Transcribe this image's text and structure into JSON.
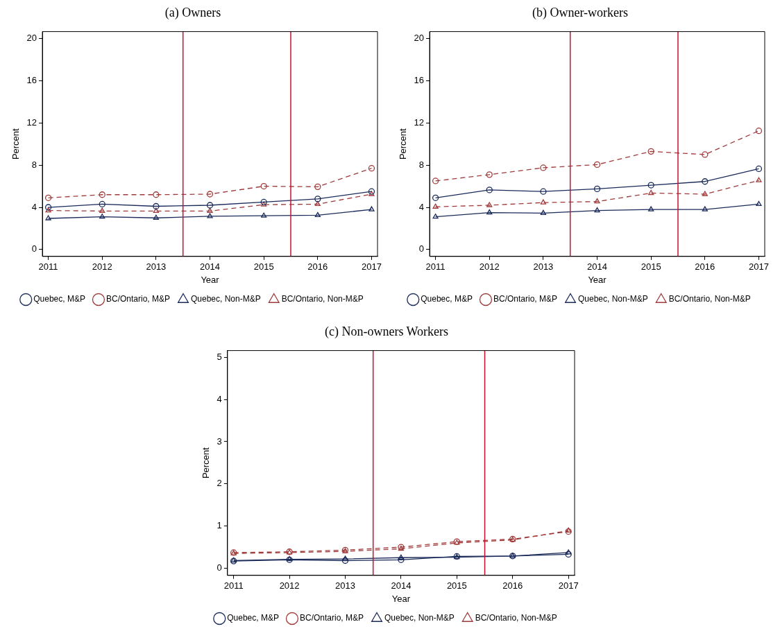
{
  "chart_data": [
    {
      "type": "line",
      "title": "(a) Owners",
      "xlabel": "Year",
      "ylabel": "Percent",
      "x": [
        2011,
        2012,
        2013,
        2014,
        2015,
        2016,
        2017
      ],
      "xlim": [
        2010.89,
        2017.11
      ],
      "xticks": [
        2011,
        2012,
        2013,
        2014,
        2015,
        2016,
        2017
      ],
      "ylim": [
        -0.65,
        20.65
      ],
      "yticks": [
        0,
        4,
        8,
        12,
        16,
        20
      ],
      "legend": "bottom",
      "series": [
        {
          "name": "Quebec, M&P",
          "color": "#1a2a5a",
          "marker": "circle",
          "line_style": "solid",
          "values": [
            4.0,
            4.3,
            4.1,
            4.2,
            4.5,
            4.8,
            5.5
          ]
        },
        {
          "name": "BC/Ontario, M&P",
          "color": "#a03a3a",
          "marker": "circle",
          "line_style": "dashed",
          "values": [
            4.9,
            5.2,
            5.2,
            5.25,
            6.0,
            5.95,
            7.7
          ]
        },
        {
          "name": "Quebec, Non-M&P",
          "color": "#1a2a5a",
          "marker": "triangle",
          "line_style": "solid",
          "values": [
            2.95,
            3.1,
            3.0,
            3.15,
            3.2,
            3.25,
            3.8
          ]
        },
        {
          "name": "BC/Ontario, Non-M&P",
          "color": "#a03a3a",
          "marker": "triangle",
          "line_style": "dashed",
          "values": [
            3.7,
            3.65,
            3.65,
            3.65,
            4.25,
            4.3,
            5.25
          ]
        }
      ],
      "ref_lines": [
        {
          "axis": "x",
          "value": 2013.5,
          "color": "#c8102e"
        },
        {
          "axis": "x",
          "value": 2015.5,
          "color": "#c8102e"
        }
      ]
    },
    {
      "type": "line",
      "title": "(b) Owner-workers",
      "xlabel": "Year",
      "ylabel": "Percent",
      "x": [
        2011,
        2012,
        2013,
        2014,
        2015,
        2016,
        2017
      ],
      "xlim": [
        2010.89,
        2017.11
      ],
      "xticks": [
        2011,
        2012,
        2013,
        2014,
        2015,
        2016,
        2017
      ],
      "ylim": [
        -0.65,
        20.65
      ],
      "yticks": [
        0,
        4,
        8,
        12,
        16,
        20
      ],
      "legend": "bottom",
      "series": [
        {
          "name": "Quebec, M&P",
          "color": "#1a2a5a",
          "marker": "circle",
          "line_style": "solid",
          "values": [
            4.9,
            5.65,
            5.5,
            5.75,
            6.1,
            6.45,
            7.65
          ]
        },
        {
          "name": "BC/Ontario, M&P",
          "color": "#a03a3a",
          "marker": "circle",
          "line_style": "dashed",
          "values": [
            6.5,
            7.1,
            7.75,
            8.05,
            9.3,
            9.0,
            11.25
          ]
        },
        {
          "name": "Quebec, Non-M&P",
          "color": "#1a2a5a",
          "marker": "triangle",
          "line_style": "solid",
          "values": [
            3.1,
            3.5,
            3.45,
            3.7,
            3.8,
            3.8,
            4.3
          ]
        },
        {
          "name": "BC/Ontario, Non-M&P",
          "color": "#a03a3a",
          "marker": "triangle",
          "line_style": "dashed",
          "values": [
            4.05,
            4.2,
            4.45,
            4.55,
            5.35,
            5.25,
            6.55
          ]
        }
      ],
      "ref_lines": [
        {
          "axis": "x",
          "value": 2013.5,
          "color": "#c8102e"
        },
        {
          "axis": "x",
          "value": 2015.5,
          "color": "#c8102e"
        }
      ]
    },
    {
      "type": "line",
      "title": "(c) Non-owners Workers",
      "xlabel": "Year",
      "ylabel": "Percent",
      "x": [
        2011,
        2012,
        2013,
        2014,
        2015,
        2016,
        2017
      ],
      "xlim": [
        2010.89,
        2017.11
      ],
      "xticks": [
        2011,
        2012,
        2013,
        2014,
        2015,
        2016,
        2017
      ],
      "ylim": [
        -0.17,
        5.16
      ],
      "yticks": [
        0,
        1,
        2,
        3,
        4,
        5
      ],
      "legend": "bottom",
      "series": [
        {
          "name": "Quebec, M&P",
          "color": "#1a2a5a",
          "marker": "circle",
          "line_style": "solid",
          "values": [
            0.17,
            0.2,
            0.18,
            0.2,
            0.28,
            0.29,
            0.33
          ]
        },
        {
          "name": "BC/Ontario, M&P",
          "color": "#a03a3a",
          "marker": "circle",
          "line_style": "dashed",
          "values": [
            0.37,
            0.39,
            0.43,
            0.5,
            0.63,
            0.69,
            0.87
          ]
        },
        {
          "name": "Quebec, Non-M&P",
          "color": "#1a2a5a",
          "marker": "triangle",
          "line_style": "solid",
          "values": [
            0.18,
            0.21,
            0.22,
            0.25,
            0.26,
            0.29,
            0.37
          ]
        },
        {
          "name": "BC/Ontario, Non-M&P",
          "color": "#a03a3a",
          "marker": "triangle",
          "line_style": "dashed",
          "values": [
            0.35,
            0.37,
            0.4,
            0.46,
            0.6,
            0.67,
            0.89
          ]
        }
      ],
      "ref_lines": [
        {
          "axis": "x",
          "value": 2013.5,
          "color": "#c8102e"
        },
        {
          "axis": "x",
          "value": 2015.5,
          "color": "#c8102e"
        }
      ]
    }
  ]
}
